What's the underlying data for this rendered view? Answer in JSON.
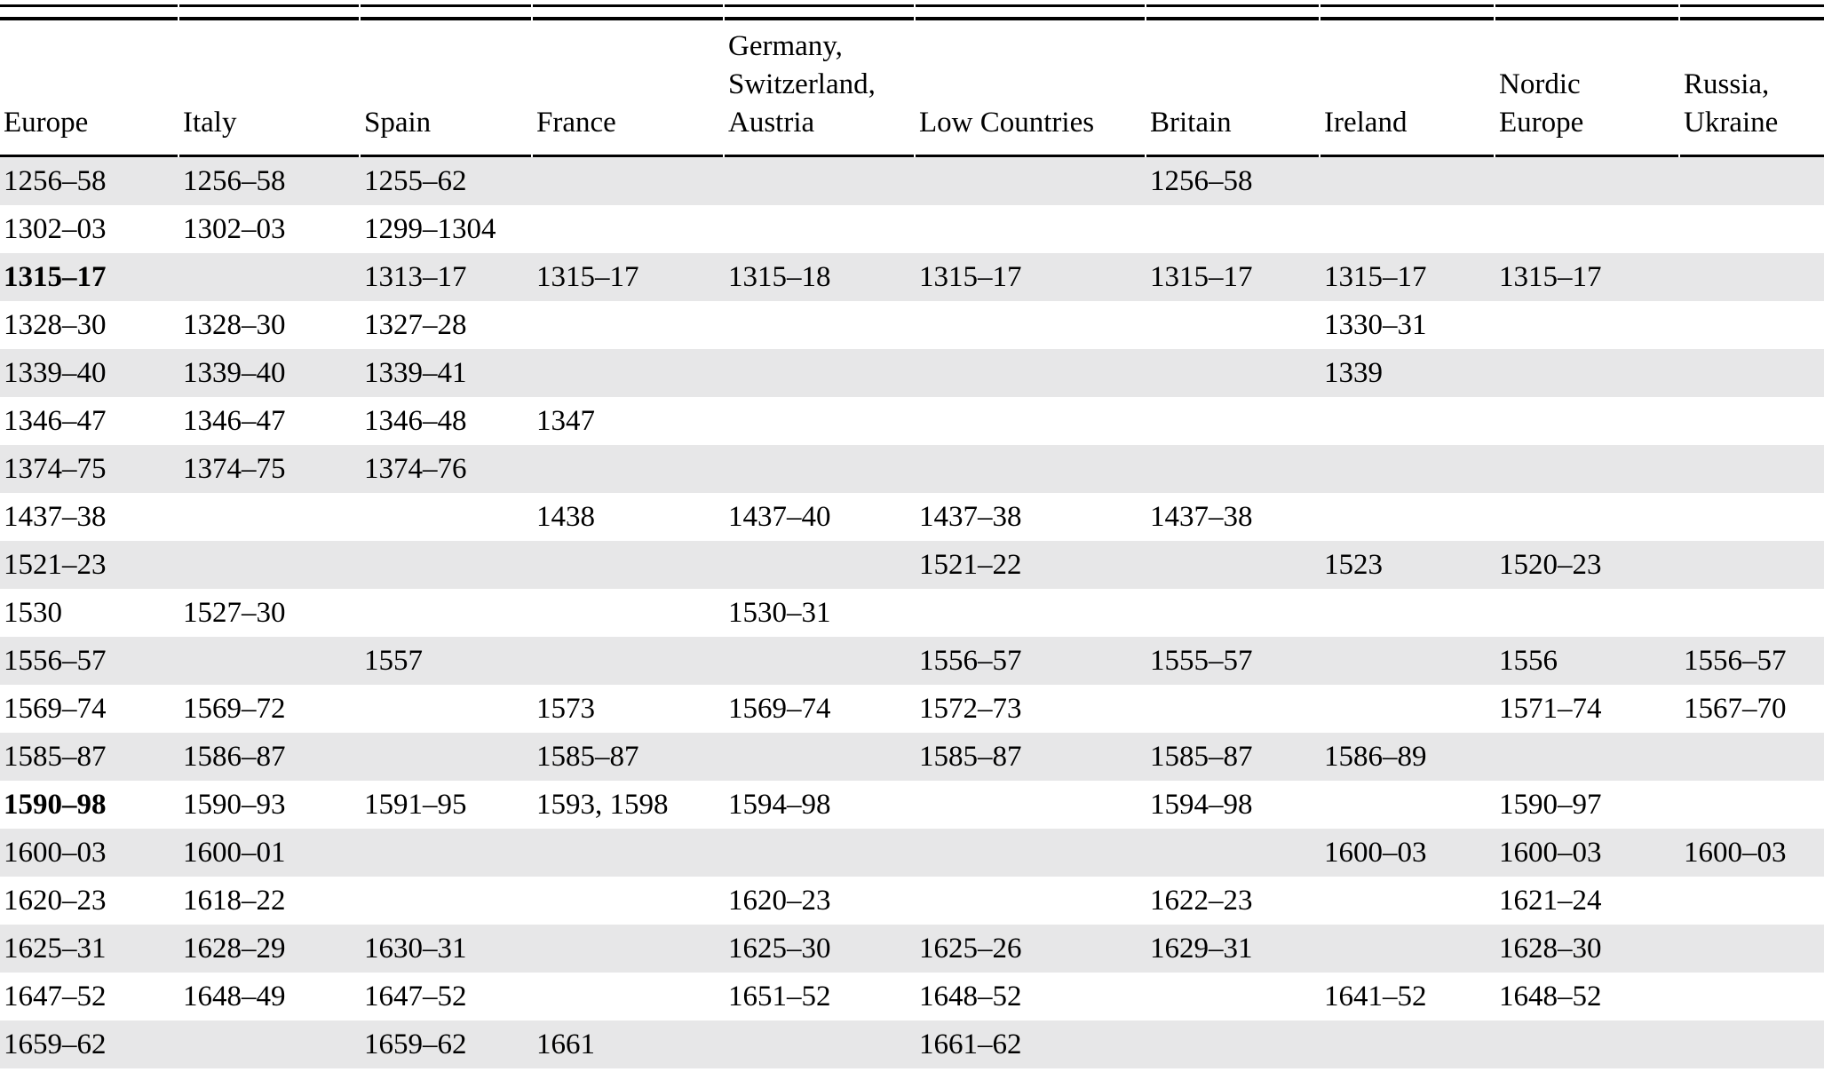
{
  "colors": {
    "page_bg": "#ffffff",
    "stripe_gray": "#e7e7e8",
    "rule_black": "#000000",
    "text_black": "#000000"
  },
  "table": {
    "columns": [
      {
        "label": "Europe"
      },
      {
        "label": "Italy"
      },
      {
        "label": "Spain"
      },
      {
        "label": "France"
      },
      {
        "label": "Germany,\nSwitzerland,\nAustria"
      },
      {
        "label": "Low Countries"
      },
      {
        "label": "Britain"
      },
      {
        "label": "Ireland"
      },
      {
        "label": "Nordic\nEurope"
      },
      {
        "label": "Russia,\nUkraine"
      }
    ],
    "rows": [
      [
        "1256–58",
        "1256–58",
        "1255–62",
        "",
        "",
        "",
        "1256–58",
        "",
        "",
        ""
      ],
      [
        "1302–03",
        "1302–03",
        "1299–1304",
        "",
        "",
        "",
        "",
        "",
        "",
        ""
      ],
      [
        "1315–17",
        "",
        "1313–17",
        "1315–17",
        "1315–18",
        "1315–17",
        "1315–17",
        "1315–17",
        "1315–17",
        ""
      ],
      [
        "1328–30",
        "1328–30",
        "1327–28",
        "",
        "",
        "",
        "",
        "1330–31",
        "",
        ""
      ],
      [
        "1339–40",
        "1339–40",
        "1339–41",
        "",
        "",
        "",
        "",
        "1339",
        "",
        ""
      ],
      [
        "1346–47",
        "1346–47",
        "1346–48",
        "1347",
        "",
        "",
        "",
        "",
        "",
        ""
      ],
      [
        "1374–75",
        "1374–75",
        "1374–76",
        "",
        "",
        "",
        "",
        "",
        "",
        ""
      ],
      [
        "1437–38",
        "",
        "",
        "1438",
        "1437–40",
        "1437–38",
        "1437–38",
        "",
        "",
        ""
      ],
      [
        "1521–23",
        "",
        "",
        "",
        "",
        "1521–22",
        "",
        "1523",
        "1520–23",
        ""
      ],
      [
        "1530",
        "1527–30",
        "",
        "",
        "1530–31",
        "",
        "",
        "",
        "",
        ""
      ],
      [
        "1556–57",
        "",
        "1557",
        "",
        "",
        "1556–57",
        "1555–57",
        "",
        "1556",
        "1556–57"
      ],
      [
        "1569–74",
        "1569–72",
        "",
        "1573",
        "1569–74",
        "1572–73",
        "",
        "",
        "1571–74",
        "1567–70"
      ],
      [
        "1585–87",
        "1586–87",
        "",
        "1585–87",
        "",
        "1585–87",
        "1585–87",
        "1586–89",
        "",
        ""
      ],
      [
        "1590–98",
        "1590–93",
        "1591–95",
        "1593, 1598",
        "1594–98",
        "",
        "1594–98",
        "",
        "1590–97",
        ""
      ],
      [
        "1600–03",
        "1600–01",
        "",
        "",
        "",
        "",
        "",
        "1600–03",
        "1600–03",
        "1600–03"
      ],
      [
        "1620–23",
        "1618–22",
        "",
        "",
        "1620–23",
        "",
        "1622–23",
        "",
        "1621–24",
        ""
      ],
      [
        "1625–31",
        "1628–29",
        "1630–31",
        "",
        "1625–30",
        "1625–26",
        "1629–31",
        "",
        "1628–30",
        ""
      ],
      [
        "1647–52",
        "1648–49",
        "1647–52",
        "",
        "1651–52",
        "1648–52",
        "",
        "1641–52",
        "1648–52",
        ""
      ],
      [
        "1659–62",
        "",
        "1659–62",
        "1661",
        "",
        "1661–62",
        "",
        "",
        "",
        ""
      ]
    ],
    "bold_cells": [
      [
        2,
        0
      ],
      [
        13,
        0
      ]
    ]
  }
}
